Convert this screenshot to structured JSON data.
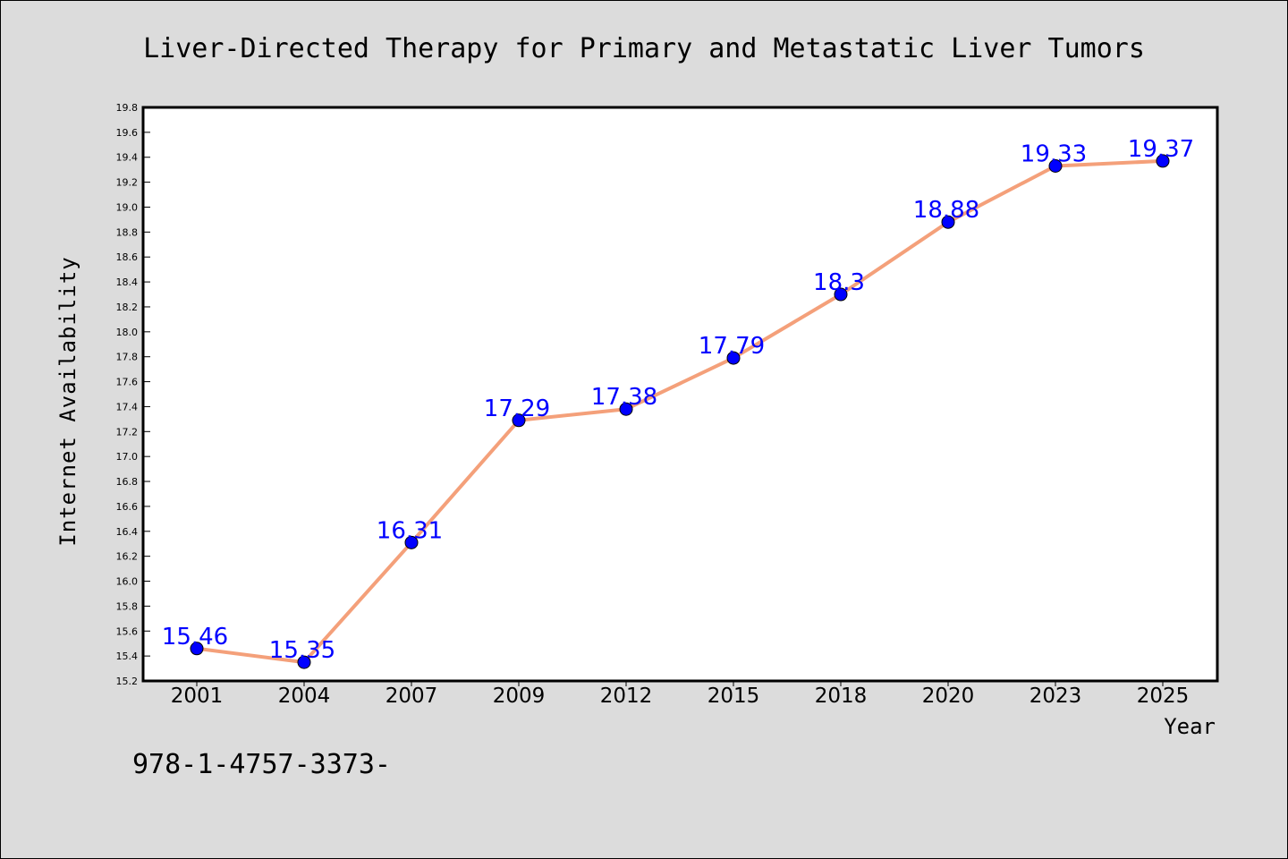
{
  "chart_data": {
    "type": "line",
    "title": "Liver-Directed Therapy for Primary and Metastatic Liver Tumors",
    "xlabel": "Year",
    "ylabel": "Internet Availability",
    "categories": [
      "2001",
      "2004",
      "2007",
      "2009",
      "2012",
      "2015",
      "2018",
      "2020",
      "2023",
      "2025"
    ],
    "series": [
      {
        "values": [
          15.46,
          15.35,
          16.31,
          17.29,
          17.38,
          17.79,
          18.3,
          18.88,
          19.33,
          19.37
        ],
        "data_labels": [
          "15.46",
          "15.35",
          "16.31",
          "17.29",
          "17.38",
          "17.79",
          "18.3",
          "18.88",
          "19.33",
          "19.37"
        ]
      }
    ],
    "ylim": [
      15.2,
      19.8
    ],
    "yticks": [
      "15.2",
      "15.4",
      "15.6",
      "15.8",
      "16.0",
      "16.2",
      "16.4",
      "16.6",
      "16.8",
      "17.0",
      "17.2",
      "17.4",
      "17.6",
      "17.8",
      "18.0",
      "18.2",
      "18.4",
      "18.6",
      "18.8",
      "19.0",
      "19.2",
      "19.4",
      "19.6",
      "19.8"
    ],
    "grid": false,
    "legend": "none",
    "colors": {
      "line": "#f4a07a",
      "marker": "#0000ff",
      "data_label": "#0000ff",
      "background": "#dcdcdc",
      "plot_area": "#ffffff"
    }
  },
  "footer_text": "978-1-4757-3373-"
}
